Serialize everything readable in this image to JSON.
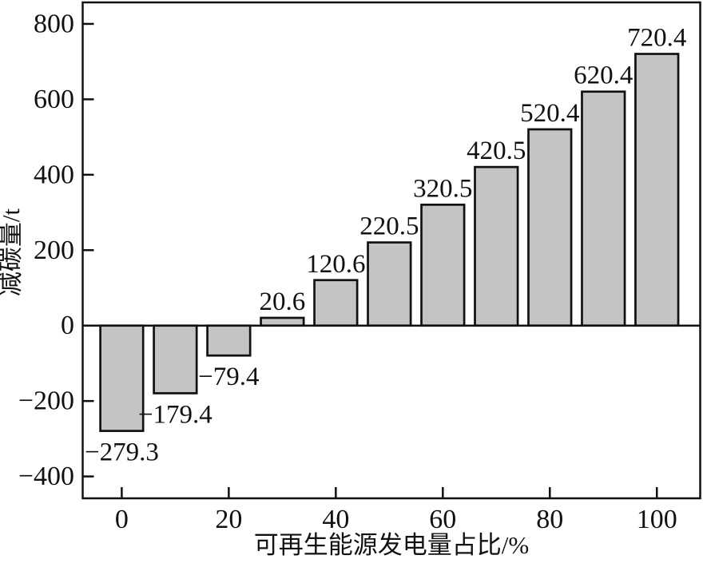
{
  "chart_data": {
    "type": "bar",
    "title": "",
    "xlabel": "可再生能源发电量占比/%",
    "ylabel": "减碳量/t",
    "categories": [
      0,
      10,
      20,
      30,
      40,
      50,
      60,
      70,
      80,
      90,
      100
    ],
    "values": [
      -279.3,
      -179.4,
      -79.4,
      20.6,
      120.6,
      220.5,
      320.5,
      420.5,
      520.4,
      620.4,
      720.4
    ],
    "bar_labels": [
      "−279.3",
      "−179.4",
      "−79.4",
      "20.6",
      "120.6",
      "220.5",
      "320.5",
      "420.5",
      "520.4",
      "620.4",
      "720.4"
    ],
    "x_ticks": [
      0,
      20,
      40,
      60,
      80,
      100
    ],
    "x_tick_labels": [
      "0",
      "20",
      "40",
      "60",
      "80",
      "100"
    ],
    "y_ticks": [
      800,
      600,
      400,
      200,
      0,
      -200,
      -400
    ],
    "y_tick_labels": [
      "800",
      "600",
      "400",
      "200",
      "0",
      "−200",
      "−400"
    ],
    "xlim": [
      -7.3,
      108.1
    ],
    "ylim": [
      -458,
      857
    ],
    "bar_width_units": 8,
    "grid": false,
    "legend": null,
    "tick_direction": "in",
    "colors": {
      "bar_fill": "#c4c4c4",
      "bar_edge": "#111111",
      "axis": "#111111",
      "background": "#ffffff"
    }
  }
}
